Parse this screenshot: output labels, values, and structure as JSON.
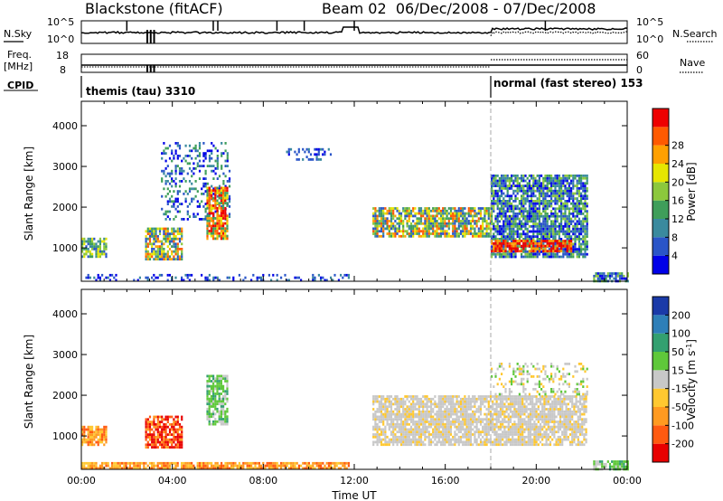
{
  "header": {
    "station": "Blackstone (fitACF)",
    "beam_info": "Beam 02  06/Dec/2008 - 07/Dec/2008"
  },
  "top_panels": {
    "nsky_label": "N.Sky",
    "nsky_ticks": [
      "10^5",
      "10^0"
    ],
    "nsearch_label": "N.Search",
    "nsearch_ticks": [
      "10^5",
      "10^0"
    ],
    "freq_label": "Freq.",
    "freq_unit": "[MHz]",
    "freq_ticks": [
      "18",
      "8"
    ],
    "nave_label": "Nave",
    "nave_ticks": [
      "60",
      "0"
    ],
    "cpid_label": "CPID",
    "cpid_segments": [
      {
        "label": "themis (tau) 3310",
        "start_hour": 0,
        "end_hour": 18
      },
      {
        "label": "normal (fast stereo) 153",
        "start_hour": 18,
        "end_hour": 24
      }
    ]
  },
  "chart_data": [
    {
      "type": "heatmap",
      "title": "",
      "quantity": "Power",
      "xlabel": "",
      "ylabel": "Slant Range [km]",
      "xlim": [
        0,
        24
      ],
      "ylim": [
        180,
        4600
      ],
      "x_ticks": [],
      "y_ticks": [
        1000,
        2000,
        3000,
        4000
      ],
      "colorbar": {
        "label": "Power [dB]",
        "range": [
          0,
          32
        ],
        "tick_labels": [
          "4",
          "8",
          "12",
          "16",
          "20",
          "24",
          "28"
        ],
        "colors": [
          "#0000e8",
          "#2a55c8",
          "#3a8a9e",
          "#3f9e5a",
          "#8cc83c",
          "#e6e600",
          "#ffa000",
          "#ff5a00",
          "#ee0000"
        ]
      },
      "regions": [
        {
          "x": [
            0.0,
            1.1
          ],
          "y": [
            800,
            1250
          ],
          "level": "mixed-blue-green"
        },
        {
          "x": [
            0.0,
            11.8
          ],
          "y": [
            180,
            360
          ],
          "level": "blue"
        },
        {
          "x": [
            2.8,
            4.4
          ],
          "y": [
            700,
            1500
          ],
          "level": "mixed-warm"
        },
        {
          "x": [
            3.5,
            6.5
          ],
          "y": [
            1700,
            3600
          ],
          "level": "blue-scattered"
        },
        {
          "x": [
            5.5,
            6.4
          ],
          "y": [
            1200,
            2500
          ],
          "level": "warm-core"
        },
        {
          "x": [
            9.0,
            11.0
          ],
          "y": [
            3200,
            3450
          ],
          "level": "blue"
        },
        {
          "x": [
            12.8,
            18.0
          ],
          "y": [
            1300,
            2000
          ],
          "level": "mixed-warm"
        },
        {
          "x": [
            18.0,
            22.2
          ],
          "y": [
            800,
            2800
          ],
          "level": "blue-green"
        },
        {
          "x": [
            18.0,
            21.5
          ],
          "y": [
            900,
            1200
          ],
          "level": "red"
        },
        {
          "x": [
            22.5,
            24.0
          ],
          "y": [
            180,
            400
          ],
          "level": "blue-green"
        }
      ]
    },
    {
      "type": "heatmap",
      "title": "",
      "quantity": "Velocity",
      "xlabel": "Time UT",
      "ylabel": "Slant Range [km]",
      "xlim": [
        0,
        24
      ],
      "ylim": [
        180,
        4600
      ],
      "x_ticks": [
        "00:00",
        "04:00",
        "08:00",
        "12:00",
        "16:00",
        "20:00",
        "00:00"
      ],
      "y_ticks": [
        1000,
        2000,
        3000,
        4000
      ],
      "colorbar": {
        "label": "Velocity [m s^-1]",
        "tick_labels": [
          "200",
          "100",
          "50",
          "15",
          "-15",
          "-50",
          "-100",
          "-200"
        ],
        "colors": [
          "#1a3aa8",
          "#2e7fb8",
          "#33a070",
          "#5fc83a",
          "#c8c8c8",
          "#ffc830",
          "#ff9a20",
          "#ff5a10",
          "#e80000"
        ]
      },
      "regions": [
        {
          "x": [
            0.0,
            1.1
          ],
          "y": [
            800,
            1250
          ],
          "level": "orange"
        },
        {
          "x": [
            0.0,
            11.8
          ],
          "y": [
            180,
            360
          ],
          "level": "orange"
        },
        {
          "x": [
            2.8,
            4.4
          ],
          "y": [
            700,
            1500
          ],
          "level": "red"
        },
        {
          "x": [
            5.5,
            6.4
          ],
          "y": [
            1300,
            2500
          ],
          "level": "green"
        },
        {
          "x": [
            12.8,
            22.2
          ],
          "y": [
            800,
            2000
          ],
          "level": "grey"
        },
        {
          "x": [
            18.0,
            22.2
          ],
          "y": [
            2000,
            2800
          ],
          "level": "grey-scattered"
        },
        {
          "x": [
            22.5,
            24.0
          ],
          "y": [
            180,
            400
          ],
          "level": "green"
        }
      ]
    }
  ]
}
